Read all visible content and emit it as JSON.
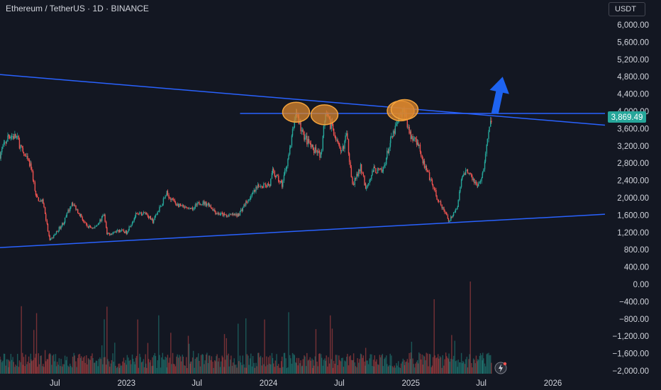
{
  "header": {
    "symbol_title": "Ethereum / TetherUS · 1D · BINANCE",
    "currency_button": "USDT"
  },
  "colors": {
    "background": "#131722",
    "up": "#26a69a",
    "down": "#ef5350",
    "trendline": "#2962ff",
    "level_line": "#2962ff",
    "arrow": "#1e63f0",
    "circle_fill": "#d9862e",
    "circle_stroke": "#f3a33c",
    "price_label": "#26a69a",
    "axis_text": "#d1d4dc"
  },
  "chart_data": {
    "type": "line",
    "style": "candlestick",
    "title": "Ethereum / TetherUS · 1D · BINANCE",
    "ylim": [
      -2000,
      6000
    ],
    "y_ticks": [
      "6,000.00",
      "5,600.00",
      "5,200.00",
      "4,800.00",
      "4,400.00",
      "4,000.00",
      "3,600.00",
      "3,200.00",
      "2,800.00",
      "2,400.00",
      "2,000.00",
      "1,600.00",
      "1,200.00",
      "800.00",
      "400.00",
      "0.00",
      "−400.00",
      "−800.00",
      "−1,200.00",
      "−1,600.00",
      "−2,000.00"
    ],
    "y_tick_values": [
      6000,
      5600,
      5200,
      4800,
      4400,
      4000,
      3600,
      3200,
      2800,
      2400,
      2000,
      1600,
      1200,
      800,
      400,
      0,
      -400,
      -800,
      -1200,
      -1600,
      -2000
    ],
    "x_ticks": [
      {
        "label": "Jul",
        "date": "2022-07-01"
      },
      {
        "label": "2023",
        "date": "2023-01-01"
      },
      {
        "label": "Jul",
        "date": "2023-07-01"
      },
      {
        "label": "2024",
        "date": "2024-01-01"
      },
      {
        "label": "Jul",
        "date": "2024-07-01"
      },
      {
        "label": "2025",
        "date": "2025-01-01"
      },
      {
        "label": "Jul",
        "date": "2025-07-01"
      },
      {
        "label": "2026",
        "date": "2026-01-01"
      }
    ],
    "xlim": [
      "2022-02-10",
      "2026-05-15"
    ],
    "last_price": 3869.49,
    "last_price_label": "3,869.49",
    "price_path": [
      [
        "2022-02-10",
        3000
      ],
      [
        "2022-03-05",
        3450
      ],
      [
        "2022-03-25",
        3400
      ],
      [
        "2022-04-10",
        3050
      ],
      [
        "2022-05-01",
        2700
      ],
      [
        "2022-05-15",
        2000
      ],
      [
        "2022-06-01",
        1900
      ],
      [
        "2022-06-18",
        1000
      ],
      [
        "2022-07-05",
        1200
      ],
      [
        "2022-07-25",
        1450
      ],
      [
        "2022-08-14",
        1900
      ],
      [
        "2022-09-05",
        1600
      ],
      [
        "2022-09-20",
        1350
      ],
      [
        "2022-10-10",
        1300
      ],
      [
        "2022-11-05",
        1600
      ],
      [
        "2022-11-12",
        1150
      ],
      [
        "2022-12-15",
        1250
      ],
      [
        "2023-01-01",
        1200
      ],
      [
        "2023-01-25",
        1600
      ],
      [
        "2023-02-20",
        1650
      ],
      [
        "2023-03-10",
        1450
      ],
      [
        "2023-04-15",
        2100
      ],
      [
        "2023-05-10",
        1850
      ],
      [
        "2023-06-15",
        1700
      ],
      [
        "2023-07-10",
        1900
      ],
      [
        "2023-08-01",
        1850
      ],
      [
        "2023-08-20",
        1650
      ],
      [
        "2023-09-10",
        1600
      ],
      [
        "2023-10-15",
        1600
      ],
      [
        "2023-11-05",
        1900
      ],
      [
        "2023-12-10",
        2300
      ],
      [
        "2024-01-05",
        2300
      ],
      [
        "2024-01-12",
        2600
      ],
      [
        "2024-02-05",
        2300
      ],
      [
        "2024-02-25",
        3100
      ],
      [
        "2024-03-12",
        4000
      ],
      [
        "2024-03-28",
        3500
      ],
      [
        "2024-04-25",
        3100
      ],
      [
        "2024-05-15",
        3000
      ],
      [
        "2024-05-27",
        3900
      ],
      [
        "2024-06-15",
        3600
      ],
      [
        "2024-07-05",
        3000
      ],
      [
        "2024-07-20",
        3450
      ],
      [
        "2024-08-05",
        2300
      ],
      [
        "2024-08-25",
        2700
      ],
      [
        "2024-09-07",
        2250
      ],
      [
        "2024-09-28",
        2650
      ],
      [
        "2024-10-20",
        2600
      ],
      [
        "2024-11-10",
        3300
      ],
      [
        "2024-12-05",
        3900
      ],
      [
        "2024-12-16",
        4000
      ],
      [
        "2025-01-01",
        3400
      ],
      [
        "2025-01-20",
        3300
      ],
      [
        "2025-02-03",
        2800
      ],
      [
        "2025-02-25",
        2300
      ],
      [
        "2025-03-12",
        1950
      ],
      [
        "2025-04-09",
        1480
      ],
      [
        "2025-05-01",
        1800
      ],
      [
        "2025-05-15",
        2600
      ],
      [
        "2025-06-01",
        2600
      ],
      [
        "2025-06-22",
        2250
      ],
      [
        "2025-07-05",
        2550
      ],
      [
        "2025-07-15",
        3200
      ],
      [
        "2025-07-28",
        3869.49
      ]
    ],
    "volume_note": "Volume histogram at chart bottom, colored by candle direction",
    "drawings": [
      {
        "type": "trendline",
        "from": [
          "2022-02-10",
          4850
        ],
        "to": [
          "2026-05-15",
          3680
        ]
      },
      {
        "type": "trendline",
        "from": [
          "2022-02-10",
          850
        ],
        "to": [
          "2026-05-15",
          1620
        ]
      },
      {
        "type": "horizontal_segment",
        "from": [
          "2023-10-20",
          3950
        ],
        "to": [
          "2026-05-15",
          3950
        ]
      },
      {
        "type": "circle",
        "center": [
          "2024-03-12",
          3980
        ]
      },
      {
        "type": "circle",
        "center": [
          "2024-05-24",
          3920
        ]
      },
      {
        "type": "circle",
        "center": [
          "2024-12-06",
          4010
        ]
      },
      {
        "type": "circle",
        "center": [
          "2024-12-16",
          4040
        ]
      },
      {
        "type": "arrow",
        "from": [
          "2025-08-05",
          3950
        ],
        "to": [
          "2025-08-25",
          4800
        ]
      }
    ]
  }
}
